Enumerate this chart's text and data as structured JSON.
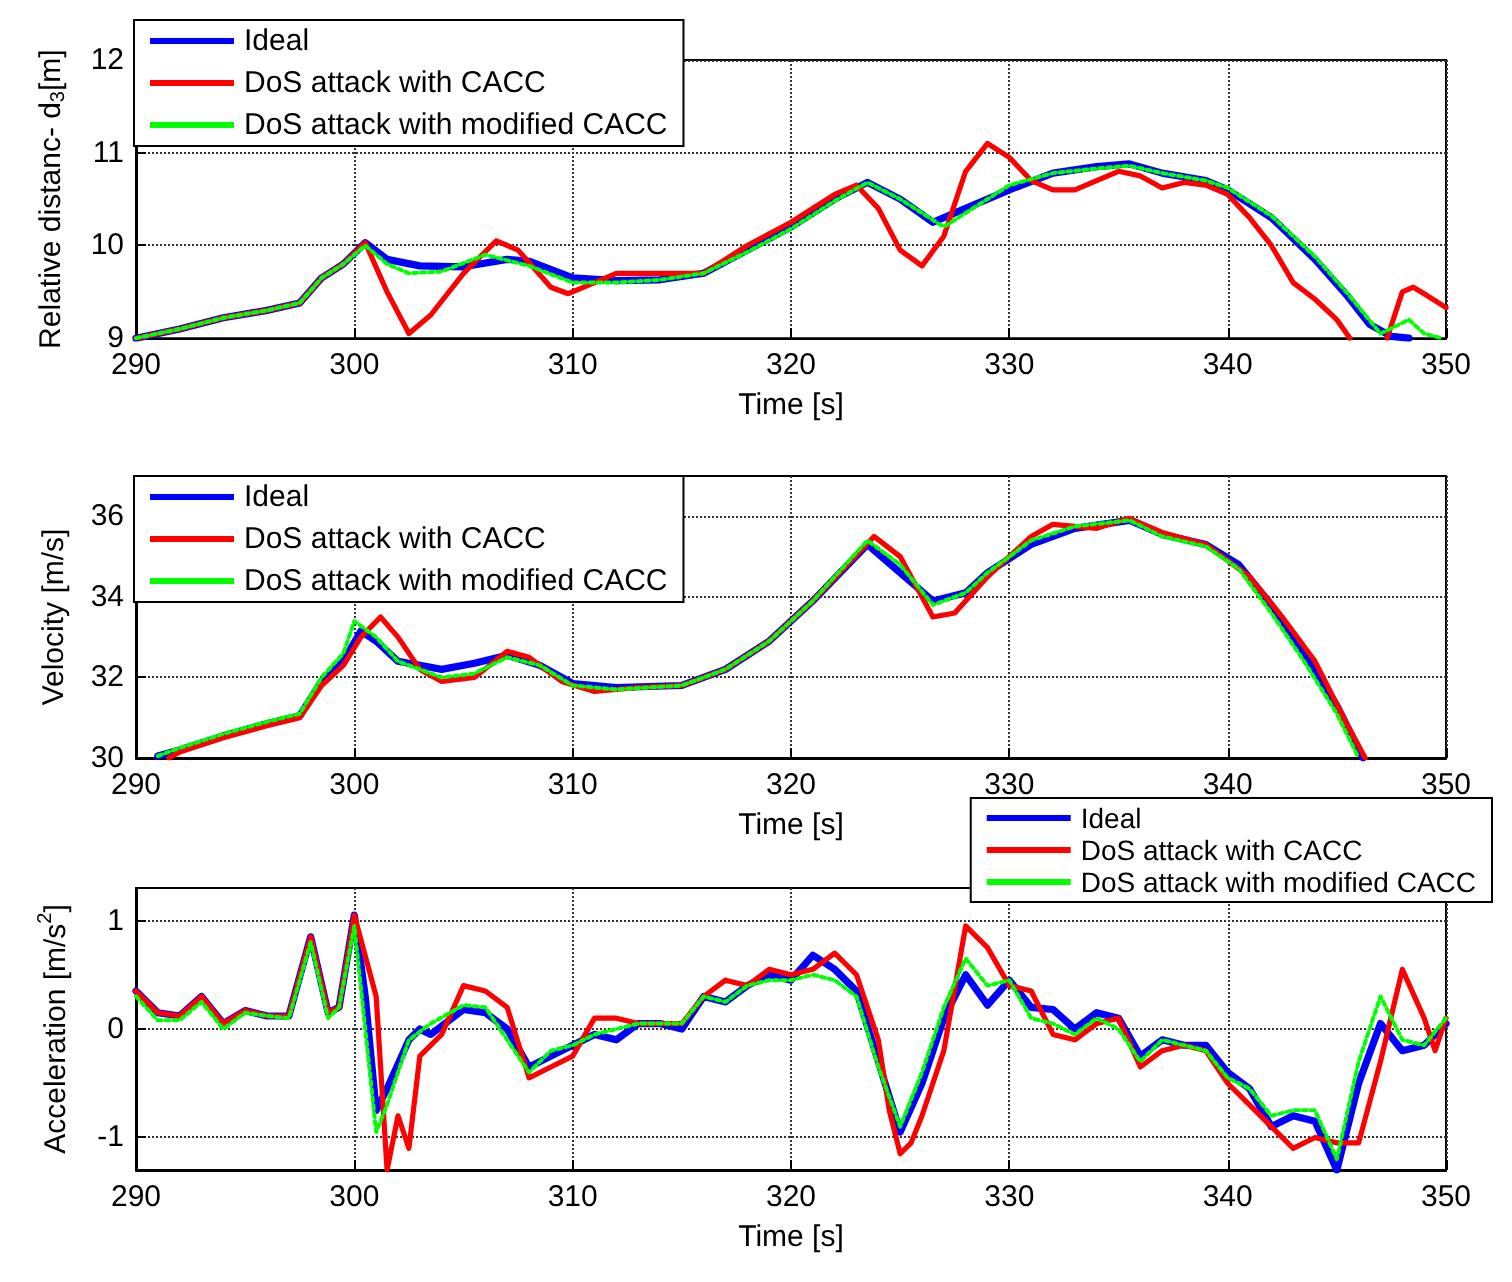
{
  "chart_data": [
    {
      "type": "line",
      "xlabel": "Time [s]",
      "ylabel": "Relative distanc- d$_{3}$[m]",
      "xlim": [
        290,
        350
      ],
      "xticks": [
        290,
        300,
        310,
        320,
        330,
        340,
        350
      ],
      "ylim": [
        9,
        12
      ],
      "yticks": [
        9,
        10,
        11,
        12
      ],
      "grid": true,
      "legend": "top left",
      "marker": "none",
      "line_style": "solid",
      "series": [
        {
          "name": "Ideal",
          "color": "#0000ff",
          "x": [
            290,
            292,
            294,
            296,
            297.5,
            298.5,
            299.5,
            300.5,
            301.5,
            303,
            305,
            307,
            308,
            310,
            312,
            314,
            316,
            318,
            320,
            322,
            323.5,
            325,
            326.5,
            328,
            330,
            332,
            334,
            335.5,
            337,
            339,
            340,
            342,
            344,
            345.5,
            346.5,
            347.5,
            348.3
          ],
          "values": [
            9.0,
            9.1,
            9.22,
            9.3,
            9.38,
            9.65,
            9.8,
            10.03,
            9.85,
            9.78,
            9.77,
            9.85,
            9.83,
            9.65,
            9.62,
            9.63,
            9.7,
            9.95,
            10.2,
            10.5,
            10.68,
            10.5,
            10.25,
            10.4,
            10.6,
            10.78,
            10.85,
            10.88,
            10.78,
            10.7,
            10.6,
            10.3,
            9.85,
            9.45,
            9.15,
            9.02,
            9.0
          ]
        },
        {
          "name": "DoS attack with CACC",
          "color": "#ff0000",
          "x": [
            290,
            292,
            294,
            296,
            297.5,
            298.5,
            299.5,
            300.5,
            301.5,
            302.5,
            303.5,
            305,
            306.5,
            307.5,
            309,
            309.8,
            311,
            312,
            314,
            316,
            318,
            320,
            322,
            323,
            324,
            325,
            326,
            327,
            328,
            329,
            330,
            331,
            332,
            333,
            335,
            336,
            337,
            338,
            339,
            340,
            341,
            342,
            343,
            344,
            345,
            345.6,
            346.5,
            347.3,
            348,
            348.5,
            349,
            350
          ],
          "values": [
            9.0,
            9.1,
            9.22,
            9.3,
            9.38,
            9.65,
            9.8,
            10.03,
            9.5,
            9.05,
            9.25,
            9.7,
            10.05,
            9.95,
            9.55,
            9.48,
            9.6,
            9.7,
            9.7,
            9.7,
            10.0,
            10.25,
            10.55,
            10.65,
            10.4,
            9.95,
            9.78,
            10.1,
            10.8,
            11.1,
            10.95,
            10.7,
            10.6,
            10.6,
            10.8,
            10.75,
            10.62,
            10.68,
            10.65,
            10.55,
            10.3,
            10.0,
            9.6,
            9.42,
            9.2,
            9.0,
            null,
            9.0,
            9.5,
            9.55,
            9.48,
            9.33
          ]
        },
        {
          "name": "DoS attack with modified CACC",
          "color": "#00ff00",
          "line_style": "dotted",
          "x": [
            290,
            292,
            294,
            296,
            297.5,
            298.5,
            299.5,
            300.5,
            301.5,
            302.5,
            304,
            306,
            308,
            310,
            312,
            314,
            316,
            318,
            320,
            322,
            323.5,
            325,
            327,
            330,
            332,
            334,
            335.5,
            337,
            339,
            340,
            342,
            344,
            345.5,
            347,
            348.3,
            349,
            349.8
          ],
          "values": [
            9.0,
            9.1,
            9.22,
            9.3,
            9.38,
            9.65,
            9.8,
            10.0,
            9.8,
            9.7,
            9.72,
            9.9,
            9.78,
            9.6,
            9.6,
            9.63,
            9.7,
            9.93,
            10.18,
            10.48,
            10.68,
            10.5,
            10.2,
            10.65,
            10.78,
            10.83,
            10.86,
            10.78,
            10.7,
            10.62,
            10.32,
            9.88,
            9.48,
            9.05,
            9.2,
            9.05,
            9.0
          ]
        }
      ]
    },
    {
      "type": "line",
      "xlabel": "Time [s]",
      "ylabel": "Velocity [m/s]",
      "xlim": [
        290,
        350
      ],
      "xticks": [
        290,
        300,
        310,
        320,
        330,
        340,
        350
      ],
      "ylim": [
        30,
        37
      ],
      "yticks": [
        30,
        32,
        34,
        36
      ],
      "grid": true,
      "legend": "top left",
      "marker": "none",
      "line_style": "solid",
      "series": [
        {
          "name": "Ideal",
          "color": "#0000ff",
          "x": [
            291,
            292,
            294,
            296,
            297.5,
            298.5,
            299.5,
            300.3,
            301,
            302,
            304,
            305.5,
            307,
            308.5,
            310,
            312,
            315,
            317,
            319,
            321,
            323.5,
            325,
            326.5,
            328,
            329,
            331,
            333,
            335.5,
            337,
            339,
            340.5,
            342,
            343.5,
            345,
            346.2
          ],
          "values": [
            30.05,
            30.2,
            30.55,
            30.85,
            31.05,
            31.9,
            32.4,
            33.15,
            32.9,
            32.4,
            32.2,
            32.35,
            32.55,
            32.3,
            31.85,
            31.75,
            31.8,
            32.2,
            32.9,
            33.9,
            35.3,
            34.6,
            33.9,
            34.1,
            34.6,
            35.3,
            35.7,
            35.9,
            35.55,
            35.3,
            34.8,
            33.8,
            32.6,
            31.3,
            30.0
          ]
        },
        {
          "name": "DoS attack with CACC",
          "color": "#ff0000",
          "x": [
            291.5,
            292,
            294,
            296,
            297.5,
            298.5,
            299.5,
            300.3,
            301.2,
            302,
            303,
            304,
            305.5,
            307,
            308,
            309.5,
            311,
            313,
            315,
            317,
            319,
            321,
            323.8,
            325,
            326.5,
            327.5,
            329,
            331,
            332,
            334,
            335.5,
            337,
            339,
            341,
            342.5,
            344,
            345.5,
            346.3
          ],
          "values": [
            30.0,
            30.15,
            30.5,
            30.8,
            31.0,
            31.8,
            32.3,
            33.0,
            33.5,
            33.0,
            32.2,
            31.9,
            32.0,
            32.65,
            32.5,
            31.9,
            31.65,
            31.75,
            31.8,
            32.2,
            32.9,
            33.9,
            35.5,
            35.0,
            33.5,
            33.6,
            34.5,
            35.5,
            35.8,
            35.7,
            35.95,
            35.6,
            35.3,
            34.5,
            33.5,
            32.4,
            30.8,
            30.0
          ]
        },
        {
          "name": "DoS attack with modified CACC",
          "color": "#00ff00",
          "line_style": "dotted",
          "x": [
            291,
            292,
            294,
            296,
            297.5,
            298.5,
            299.5,
            300,
            301,
            302,
            304,
            305.5,
            307,
            308.5,
            310,
            312,
            315,
            317,
            319,
            321,
            323.5,
            325,
            326.5,
            328,
            329,
            331,
            333,
            335.5,
            337,
            339,
            340.5,
            342,
            343.5,
            345,
            346
          ],
          "values": [
            30.05,
            30.25,
            30.6,
            30.9,
            31.1,
            32.0,
            32.6,
            33.4,
            33.0,
            32.4,
            32.0,
            32.1,
            32.5,
            32.3,
            31.8,
            31.7,
            31.8,
            32.2,
            32.9,
            33.9,
            35.4,
            34.8,
            33.8,
            34.1,
            34.6,
            35.4,
            35.75,
            35.9,
            35.5,
            35.25,
            34.7,
            33.6,
            32.4,
            31.1,
            30.0
          ]
        }
      ]
    },
    {
      "type": "line",
      "xlabel": "Time [s]",
      "ylabel": "Acceleration [m/s$^{2}$]",
      "xlim": [
        290,
        350
      ],
      "xticks": [
        290,
        300,
        310,
        320,
        330,
        340,
        350
      ],
      "ylim": [
        -1.3,
        1.3
      ],
      "yticks": [
        -1,
        0,
        1
      ],
      "grid": true,
      "legend": "top right",
      "marker": "none",
      "line_style": "solid",
      "series": [
        {
          "name": "Ideal",
          "color": "#0000ff",
          "x": [
            290,
            291,
            292,
            293,
            294,
            295,
            296,
            297,
            298,
            298.8,
            299.3,
            300,
            300.5,
            301,
            301.5,
            302.5,
            303,
            303.5,
            305,
            306,
            307,
            308,
            309,
            310,
            311,
            312,
            313,
            314,
            315,
            316,
            317,
            318,
            319,
            320,
            321,
            322,
            323,
            324,
            325,
            326,
            327,
            328,
            329,
            330,
            331,
            332,
            333,
            334,
            335,
            336,
            337,
            338,
            339,
            340,
            341,
            342,
            343,
            344,
            345,
            346,
            347,
            348,
            349,
            350
          ],
          "values": [
            0.35,
            0.15,
            0.12,
            0.3,
            0.05,
            0.17,
            0.12,
            0.12,
            0.85,
            0.15,
            0.2,
            1.05,
            0.3,
            -0.75,
            -0.55,
            -0.1,
            0.0,
            -0.05,
            0.18,
            0.15,
            0.0,
            -0.35,
            -0.25,
            -0.15,
            -0.05,
            -0.1,
            0.05,
            0.05,
            0.0,
            0.3,
            0.25,
            0.4,
            0.5,
            0.45,
            0.68,
            0.55,
            0.35,
            -0.3,
            -0.95,
            -0.5,
            0.1,
            0.5,
            0.22,
            0.45,
            0.2,
            0.18,
            0.0,
            0.15,
            0.1,
            -0.25,
            -0.1,
            -0.15,
            -0.15,
            -0.4,
            -0.55,
            -0.9,
            -0.8,
            -0.85,
            -1.3,
            -0.5,
            0.05,
            -0.2,
            -0.15,
            0.05
          ]
        },
        {
          "name": "DoS attack with CACC",
          "color": "#ff0000",
          "x": [
            290,
            291,
            292,
            293,
            294,
            295,
            296,
            297,
            298,
            298.8,
            299.3,
            300,
            301,
            301.5,
            302,
            302.5,
            303,
            304,
            305,
            306,
            307,
            308,
            309,
            310,
            311,
            312,
            313,
            315,
            316,
            317,
            318,
            319,
            320,
            321,
            322,
            323,
            324,
            324.5,
            325,
            325.5,
            326,
            327,
            328,
            328.5,
            329,
            330,
            331,
            332,
            333,
            334,
            335,
            336,
            337,
            338,
            339,
            340,
            341,
            342,
            343,
            344,
            345,
            346,
            347,
            348,
            349,
            349.5,
            350
          ],
          "values": [
            0.35,
            0.15,
            0.12,
            0.3,
            0.05,
            0.17,
            0.12,
            0.12,
            0.85,
            0.15,
            0.2,
            1.05,
            0.3,
            -1.3,
            -0.8,
            -1.1,
            -0.25,
            -0.05,
            0.4,
            0.35,
            0.2,
            -0.45,
            -0.35,
            -0.25,
            0.1,
            0.1,
            0.05,
            0.05,
            0.3,
            0.45,
            0.4,
            0.55,
            0.5,
            0.55,
            0.7,
            0.5,
            -0.1,
            -0.75,
            -1.15,
            -1.05,
            -0.8,
            -0.2,
            0.95,
            0.85,
            0.75,
            0.4,
            0.35,
            -0.05,
            -0.1,
            0.05,
            0.1,
            -0.35,
            -0.2,
            -0.15,
            -0.2,
            -0.5,
            -0.7,
            -0.9,
            -1.1,
            -1.0,
            -1.05,
            -1.05,
            -0.3,
            0.55,
            0.1,
            -0.2,
            0.1
          ]
        },
        {
          "name": "DoS attack with modified CACC",
          "color": "#00ff00",
          "line_style": "dotted",
          "x": [
            290,
            291,
            292,
            293,
            294,
            295,
            296,
            297,
            298,
            298.8,
            299.3,
            300,
            300.5,
            301,
            301.5,
            302.5,
            303.5,
            305,
            306,
            307,
            308,
            309,
            310,
            311,
            312,
            313,
            315,
            316,
            317,
            318,
            319,
            320,
            321,
            322,
            323,
            324,
            325,
            326,
            327,
            328,
            329,
            330,
            331,
            332,
            333,
            334,
            335,
            336,
            337,
            338,
            339,
            340,
            341,
            342,
            343,
            344,
            345,
            346,
            347,
            348,
            349,
            350
          ],
          "values": [
            0.3,
            0.08,
            0.08,
            0.25,
            0.0,
            0.15,
            0.12,
            0.1,
            0.8,
            0.1,
            0.2,
            0.95,
            0.0,
            -0.95,
            -0.7,
            -0.1,
            0.05,
            0.22,
            0.2,
            -0.1,
            -0.4,
            -0.2,
            -0.15,
            -0.05,
            0.0,
            0.05,
            0.05,
            0.3,
            0.25,
            0.4,
            0.45,
            0.45,
            0.5,
            0.45,
            0.3,
            -0.35,
            -0.9,
            -0.4,
            0.2,
            0.65,
            0.4,
            0.45,
            0.1,
            0.05,
            -0.05,
            0.1,
            0.0,
            -0.3,
            -0.1,
            -0.15,
            -0.2,
            -0.45,
            -0.55,
            -0.8,
            -0.75,
            -0.75,
            -1.2,
            -0.3,
            0.3,
            -0.1,
            -0.15,
            0.1
          ]
        }
      ]
    }
  ]
}
